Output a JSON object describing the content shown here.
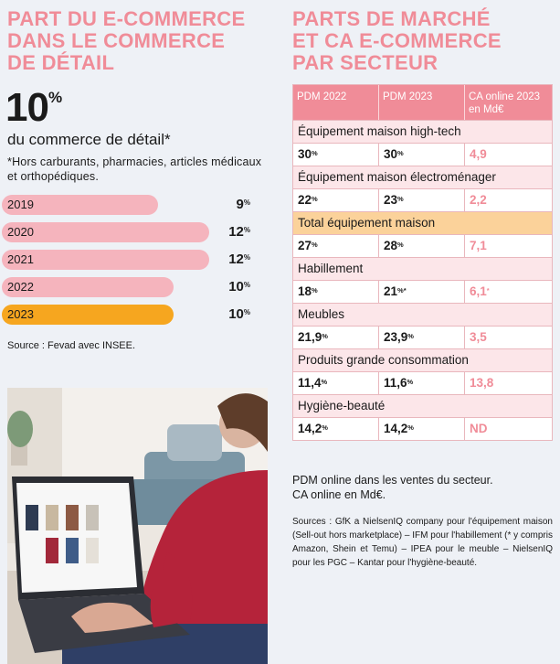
{
  "left": {
    "title": "PART DU E-COMMERCE\nDANS LE COMMERCE\nDE DÉTAIL",
    "big_value": "10",
    "big_unit": "%",
    "big_caption": "du commerce de détail*",
    "footnote": "*Hors carburants, pharmacies, articles médicaux et orthopédiques.",
    "bars": [
      {
        "year": "2019",
        "value": "9",
        "unit": "%",
        "share": 0.61
      },
      {
        "year": "2020",
        "value": "12",
        "unit": "%",
        "share": 0.81
      },
      {
        "year": "2021",
        "value": "12",
        "unit": "%",
        "share": 0.81
      },
      {
        "year": "2022",
        "value": "10",
        "unit": "%",
        "share": 0.67
      },
      {
        "year": "2023",
        "value": "10",
        "unit": "%",
        "share": 0.67
      }
    ],
    "source": "Source : Fevad avec INSEE."
  },
  "right": {
    "title": "PARTS DE MARCHÉ\nET CA E-COMMERCE\nPAR SECTEUR",
    "headers": [
      "PDM 2022",
      "PDM 2023",
      "CA online 2023\nen Md€"
    ],
    "rows": [
      {
        "sector": "Équipement maison high-tech",
        "pdm2022": "30",
        "pdm2023": "30",
        "ca": "4,9"
      },
      {
        "sector": "Équipement maison électroménager",
        "pdm2022": "22",
        "pdm2023": "23",
        "ca": "2,2"
      },
      {
        "sector": "Total équipement maison",
        "pdm2022": "27",
        "pdm2023": "28",
        "ca": "7,1"
      },
      {
        "sector": "Habillement",
        "pdm2022": "18",
        "pdm2023": "21",
        "pdm2023_suffix": "%*",
        "ca": "6,1",
        "ca_suffix": "*"
      },
      {
        "sector": "Meubles",
        "pdm2022": "21,9",
        "pdm2023": "23,9",
        "ca": "3,5"
      },
      {
        "sector": "Produits grande consommation",
        "pdm2022": "11,4",
        "pdm2023": "11,6",
        "ca": "13,8"
      },
      {
        "sector": "Hygiène-beauté",
        "pdm2022": "14,2",
        "pdm2023": "14,2",
        "ca": "ND"
      }
    ],
    "note": "PDM online dans les ventes du secteur.\nCA online en Md€.",
    "sources": "Sources : GfK a NielsenIQ company pour l'équipement maison (Sell-out hors marketplace) – IFM pour l'habillement (* y compris Amazon, Shein et Temu) – IPEA pour le meuble – NielsenIQ pour les PGC – Kantar pour l'hygiène-beauté."
  },
  "colors": {
    "pink": "#f08c98",
    "bar": "#f5b4bd",
    "highlight": "#f6a61f",
    "total_row": "#fbd29a"
  }
}
